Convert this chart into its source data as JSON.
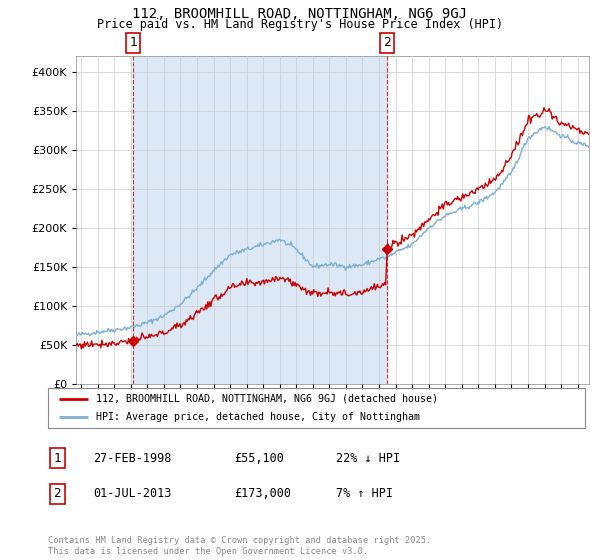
{
  "title_line1": "112, BROOMHILL ROAD, NOTTINGHAM, NG6 9GJ",
  "title_line2": "Price paid vs. HM Land Registry's House Price Index (HPI)",
  "legend_line1": "112, BROOMHILL ROAD, NOTTINGHAM, NG6 9GJ (detached house)",
  "legend_line2": "HPI: Average price, detached house, City of Nottingham",
  "footnote": "Contains HM Land Registry data © Crown copyright and database right 2025.\nThis data is licensed under the Open Government Licence v3.0.",
  "sale1_label": "1",
  "sale1_date": "27-FEB-1998",
  "sale1_price": "£55,100",
  "sale1_hpi": "22% ↓ HPI",
  "sale2_label": "2",
  "sale2_date": "01-JUL-2013",
  "sale2_price": "£173,000",
  "sale2_hpi": "7% ↑ HPI",
  "ylim": [
    0,
    420000
  ],
  "xlim_start": 1994.7,
  "xlim_end": 2025.7,
  "red_color": "#cc0000",
  "blue_color": "#7bafd4",
  "shade_color": "#dce8f5",
  "grid_color": "#cccccc",
  "marker1_year": 1998.15,
  "marker1_price": 55100,
  "marker2_year": 2013.5,
  "marker2_price": 173000
}
